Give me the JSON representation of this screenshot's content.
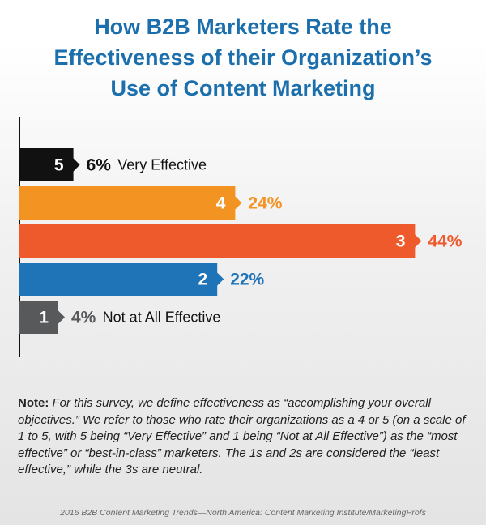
{
  "title_lines": [
    "How B2B Marketers Rate the",
    "Effectiveness of their Organization’s",
    "Use of Content Marketing"
  ],
  "chart_data": {
    "type": "bar",
    "orientation": "horizontal",
    "categories": [
      "5",
      "4",
      "3",
      "2",
      "1"
    ],
    "values": [
      6,
      24,
      44,
      22,
      4
    ],
    "value_labels": [
      "6%",
      "24%",
      "44%",
      "22%",
      "4%"
    ],
    "annotations": [
      "Very Effective",
      "",
      "",
      "",
      "Not at All Effective"
    ],
    "colors": [
      "#111111",
      "#f39322",
      "#ef5a2d",
      "#1f73b7",
      "#58595b"
    ],
    "value_label_colors": [
      "#111111",
      "#f39322",
      "#ef5a2d",
      "#1f73b7",
      "#58595b"
    ]
  },
  "note": {
    "label": "Note:",
    "text": "For this survey, we define effectiveness as “accomplishing your overall objectives.” We refer to those who rate their organizations as a 4 or 5 (on a scale of 1 to 5, with 5 being “Very Effective” and 1 being “Not at All Effective”) as the “most effective” or “best-in-class” marketers. The 1s and 2s are considered the “least effective,” while the 3s are neutral."
  },
  "source": "2016 B2B Content Marketing Trends—North America: Content Marketing Institute/MarketingProfs"
}
